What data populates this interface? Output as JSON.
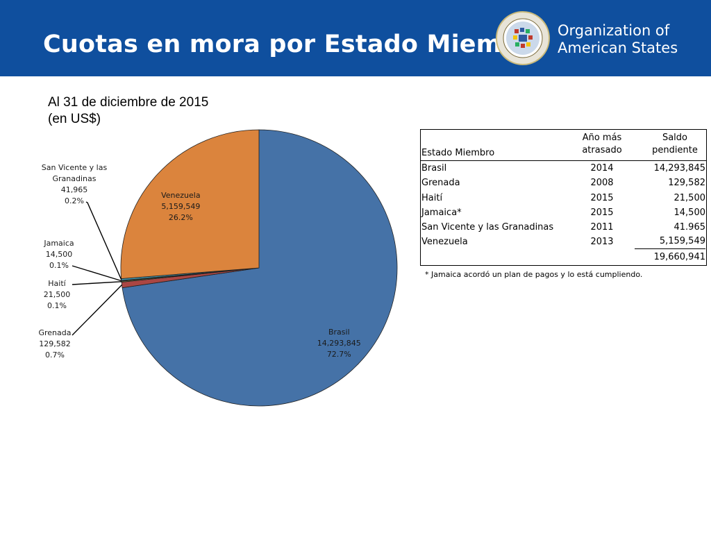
{
  "header": {
    "title": "Cuotas en mora por Estado Miembro",
    "org_line1": "Organization of",
    "org_line2": "American States"
  },
  "subtitle": {
    "line1": "Al 31 de diciembre de 2015",
    "line2": "(en US$)"
  },
  "chart_data": {
    "type": "pie",
    "slices": [
      {
        "label": "Brasil",
        "value": 14293845,
        "value_text": "14,293,845",
        "percent": "72.7%",
        "color": "#4572a7"
      },
      {
        "label": "Grenada",
        "value": 129582,
        "value_text": "129,582",
        "percent": "0.7%",
        "color": "#aa4643"
      },
      {
        "label": "Haití",
        "value": 21500,
        "value_text": "21,500",
        "percent": "0.1%",
        "color": "#89a54e"
      },
      {
        "label": "Jamaica",
        "value": 14500,
        "value_text": "14,500",
        "percent": "0.1%",
        "color": "#71588f"
      },
      {
        "label": "San Vicente y las Granadinas",
        "label_lines": [
          "San Vicente y las",
          "Granadinas"
        ],
        "value": 41965,
        "value_text": "41,965",
        "percent": "0.2%",
        "color": "#4198af"
      },
      {
        "label": "Venezuela",
        "value": 5159549,
        "value_text": "5,159,549",
        "percent": "26.2%",
        "color": "#db843d"
      }
    ]
  },
  "table": {
    "headers": {
      "col1": "Estado Miembro",
      "col2_line1": "Año más",
      "col2_line2": "atrasado",
      "col3_line1": "Saldo",
      "col3_line2": "pendiente"
    },
    "rows": [
      {
        "estado": "Brasil",
        "anio": "2014",
        "saldo": "14,293,845"
      },
      {
        "estado": "Grenada",
        "anio": "2008",
        "saldo": "129,582"
      },
      {
        "estado": "Haití",
        "anio": "2015",
        "saldo": "21,500"
      },
      {
        "estado": "Jamaica*",
        "anio": "2015",
        "saldo": "14,500"
      },
      {
        "estado": "San Vicente y las Granadinas",
        "anio": "2011",
        "saldo": "41.965"
      },
      {
        "estado": "Venezuela",
        "anio": "2013",
        "saldo": "5,159,549"
      }
    ],
    "total": "19,660,941",
    "footnote": "* Jamaica acordó un plan de pagos y lo está cumpliendo."
  },
  "icons": {
    "seal": "oas-seal-icon"
  }
}
